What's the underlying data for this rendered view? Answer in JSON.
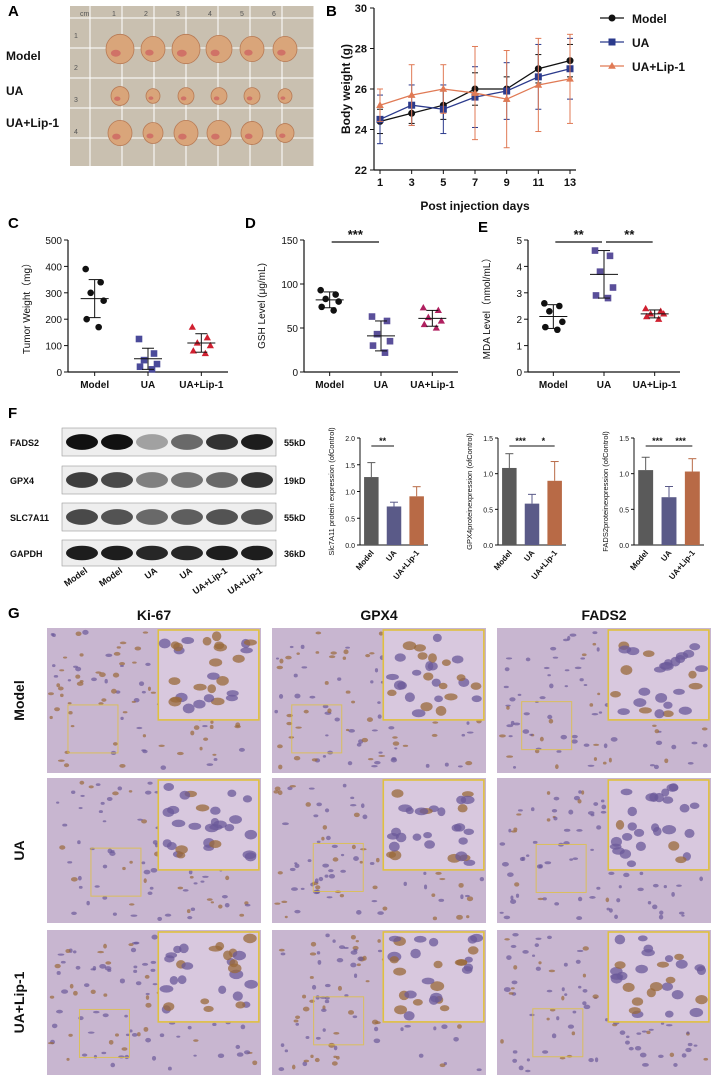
{
  "panels": {
    "A": {
      "letter": "A",
      "row_labels": [
        "Model",
        "UA",
        "UA+Lip-1"
      ],
      "ruler_top": [
        "cm",
        "1",
        "2",
        "3",
        "4",
        "5",
        "6"
      ],
      "ruler_left": [
        "1",
        "2",
        "3",
        "4"
      ],
      "photo_colors": {
        "grid_bg": "#c9c0b0",
        "tumor": "#d9a57a",
        "grid_line": "#ffffff"
      }
    },
    "B": {
      "letter": "B"
    },
    "C": {
      "letter": "C"
    },
    "D": {
      "letter": "D"
    },
    "E": {
      "letter": "E"
    },
    "F": {
      "letter": "F",
      "blot_labels": [
        "FADS2",
        "GPX4",
        "SLC7A11",
        "GAPDH"
      ],
      "kd_labels": [
        "55kD",
        "19kD",
        "55kD",
        "36kD"
      ],
      "lane_labels": [
        "Model",
        "Model",
        "UA",
        "UA",
        "UA+Lip-1",
        "UA+Lip-1"
      ]
    },
    "G": {
      "letter": "G",
      "col_labels": [
        "Ki-67",
        "GPX4",
        "FADS2"
      ],
      "row_labels": [
        "Model",
        "UA",
        "UA+Lip-1"
      ],
      "tissue_colors": {
        "base": "#c8b6d0",
        "nucleus": "#6b5a9a",
        "brown": "#9a6a3a",
        "inset_border": "#e0c040"
      }
    }
  },
  "chart_data": [
    {
      "id": "B",
      "type": "line",
      "title": "",
      "xlabel": "Post injection days",
      "ylabel": "Body weight (g)",
      "x": [
        1,
        3,
        5,
        7,
        9,
        11,
        13
      ],
      "xticks": [
        "1",
        "3",
        "5",
        "7",
        "9",
        "11",
        "13"
      ],
      "ylim": [
        22,
        30
      ],
      "yticks": [
        "22",
        "24",
        "26",
        "28",
        "30"
      ],
      "legend_position": "top-right",
      "series": [
        {
          "name": "Model",
          "color": "#111111",
          "marker": "circle",
          "values": [
            24.4,
            24.8,
            25.2,
            26.0,
            26.0,
            27.0,
            27.4
          ],
          "err": [
            0.6,
            0.5,
            0.7,
            0.8,
            0.6,
            0.7,
            0.8
          ]
        },
        {
          "name": "UA",
          "color": "#2b3a8c",
          "marker": "square",
          "values": [
            24.5,
            25.2,
            25.0,
            25.6,
            25.9,
            26.6,
            27.0
          ],
          "err": [
            1.2,
            1.0,
            1.2,
            1.5,
            1.4,
            1.6,
            1.5
          ]
        },
        {
          "name": "UA+Lip-1",
          "color": "#e07a55",
          "marker": "triangle",
          "values": [
            25.2,
            25.7,
            26.0,
            25.8,
            25.5,
            26.2,
            26.5
          ],
          "err": [
            0.8,
            1.5,
            1.2,
            2.3,
            2.4,
            2.3,
            2.2
          ]
        }
      ]
    },
    {
      "id": "C",
      "type": "scatter",
      "ylabel": "Tumor Weight（mg）",
      "categories": [
        "Model",
        "UA",
        "UA+Lip-1"
      ],
      "ylim": [
        0,
        500
      ],
      "yticks": [
        "0",
        "100",
        "200",
        "300",
        "400",
        "500"
      ],
      "series": [
        {
          "name": "Model",
          "color": "#111111",
          "marker": "circle",
          "values": [
            390,
            340,
            300,
            270,
            200,
            170
          ],
          "mean": 278,
          "sd": 72
        },
        {
          "name": "UA",
          "color": "#4a4a9a",
          "marker": "square",
          "values": [
            125,
            70,
            45,
            30,
            20,
            10
          ],
          "mean": 50,
          "sd": 40
        },
        {
          "name": "UA+Lip-1",
          "color": "#d02030",
          "marker": "triangle",
          "values": [
            170,
            130,
            110,
            100,
            80,
            70
          ],
          "mean": 110,
          "sd": 35
        }
      ]
    },
    {
      "id": "D",
      "type": "scatter",
      "ylabel": "GSH Level (μg/mL)",
      "categories": [
        "Model",
        "UA",
        "UA+Lip-1"
      ],
      "ylim": [
        0,
        150
      ],
      "yticks": [
        "0",
        "50",
        "100",
        "150"
      ],
      "annotations": [
        {
          "text": "***",
          "from": 0,
          "to": 1
        }
      ],
      "series": [
        {
          "name": "Model",
          "color": "#111111",
          "marker": "circle",
          "values": [
            93,
            88,
            83,
            80,
            74,
            70
          ],
          "mean": 82,
          "sd": 9
        },
        {
          "name": "UA",
          "color": "#5a4f9a",
          "marker": "square",
          "values": [
            63,
            58,
            43,
            35,
            30,
            22
          ],
          "mean": 41,
          "sd": 17
        },
        {
          "name": "UA+Lip-1",
          "color": "#b02060",
          "marker": "triangle",
          "values": [
            73,
            70,
            62,
            58,
            54,
            50
          ],
          "mean": 61,
          "sd": 9
        }
      ]
    },
    {
      "id": "E",
      "type": "scatter",
      "ylabel": "MDA Level（nmol/mL）",
      "categories": [
        "Model",
        "UA",
        "UA+Lip-1"
      ],
      "ylim": [
        0,
        5
      ],
      "yticks": [
        "0",
        "1",
        "2",
        "3",
        "4",
        "5"
      ],
      "annotations": [
        {
          "text": "**",
          "from": 0,
          "to": 1
        },
        {
          "text": "**",
          "from": 1,
          "to": 2
        }
      ],
      "series": [
        {
          "name": "Model",
          "color": "#111111",
          "marker": "circle",
          "values": [
            2.6,
            2.5,
            2.3,
            1.9,
            1.7,
            1.6
          ],
          "mean": 2.1,
          "sd": 0.45
        },
        {
          "name": "UA",
          "color": "#5a4f9a",
          "marker": "square",
          "values": [
            4.6,
            4.4,
            3.8,
            3.2,
            2.9,
            2.8
          ],
          "mean": 3.7,
          "sd": 0.9
        },
        {
          "name": "UA+Lip-1",
          "color": "#d02030",
          "marker": "triangle",
          "values": [
            2.4,
            2.3,
            2.2,
            2.2,
            2.1,
            2.0
          ],
          "mean": 2.2,
          "sd": 0.15
        }
      ]
    },
    {
      "id": "F1",
      "type": "bar",
      "ylabel": "Slc7A11 protein expression (ofControl)",
      "categories": [
        "Model",
        "UA",
        "UA+Lip-1"
      ],
      "values": [
        1.27,
        0.72,
        0.91
      ],
      "err": [
        0.27,
        0.08,
        0.18
      ],
      "colors": [
        "#5a5a5a",
        "#5a5a88",
        "#b86a46"
      ],
      "ylim": [
        0,
        2.0
      ],
      "yticks": [
        "0.0",
        "0.5",
        "1.0",
        "1.5",
        "2.0"
      ],
      "annotations": [
        {
          "text": "**",
          "from": 0,
          "to": 1
        }
      ]
    },
    {
      "id": "F2",
      "type": "bar",
      "ylabel": "GPX4proteinexpression (ofControl)",
      "categories": [
        "Model",
        "UA",
        "UA+Lip-1"
      ],
      "values": [
        1.08,
        0.58,
        0.9
      ],
      "err": [
        0.2,
        0.13,
        0.27
      ],
      "colors": [
        "#5a5a5a",
        "#5a5a88",
        "#b86a46"
      ],
      "ylim": [
        0,
        1.5
      ],
      "yticks": [
        "0.0",
        "0.5",
        "1.0",
        "1.5"
      ],
      "annotations": [
        {
          "text": "***",
          "from": 0,
          "to": 1
        },
        {
          "text": "*",
          "from": 1,
          "to": 2
        }
      ]
    },
    {
      "id": "F3",
      "type": "bar",
      "ylabel": "FADS2proteinexpression (ofControl)",
      "categories": [
        "Model",
        "UA",
        "UA+Lip-1"
      ],
      "values": [
        1.05,
        0.67,
        1.03
      ],
      "err": [
        0.18,
        0.15,
        0.18
      ],
      "colors": [
        "#5a5a5a",
        "#5a5a88",
        "#b86a46"
      ],
      "ylim": [
        0,
        1.5
      ],
      "yticks": [
        "0.0",
        "0.5",
        "1.0",
        "1.5"
      ],
      "annotations": [
        {
          "text": "***",
          "from": 0,
          "to": 1
        },
        {
          "text": "***",
          "from": 1,
          "to": 2
        }
      ]
    }
  ]
}
